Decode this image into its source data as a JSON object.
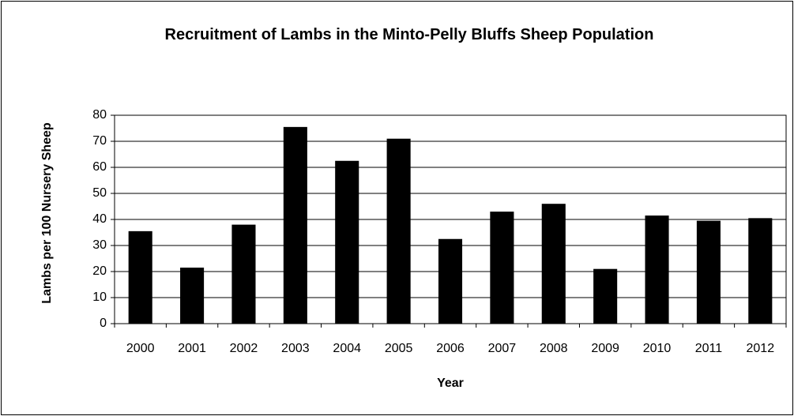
{
  "chart_data": {
    "type": "bar",
    "title": "Recruitment of Lambs in the Minto-Pelly Bluffs Sheep Population",
    "x_label": "Year",
    "y_label": "Lambs per 100 Nursery Sheep",
    "categories": [
      "2000",
      "2001",
      "2002",
      "2003",
      "2004",
      "2005",
      "2006",
      "2007",
      "2008",
      "2009",
      "2010",
      "2011",
      "2012"
    ],
    "values": [
      35.5,
      21.5,
      38,
      75.5,
      62.5,
      71,
      32.5,
      43,
      46,
      21,
      41.5,
      39.5,
      40.5
    ],
    "color": "#000000",
    "ylim": [
      0,
      80
    ],
    "yticks": [
      0,
      10,
      20,
      30,
      40,
      50,
      60,
      70,
      80
    ],
    "grid": true
  }
}
